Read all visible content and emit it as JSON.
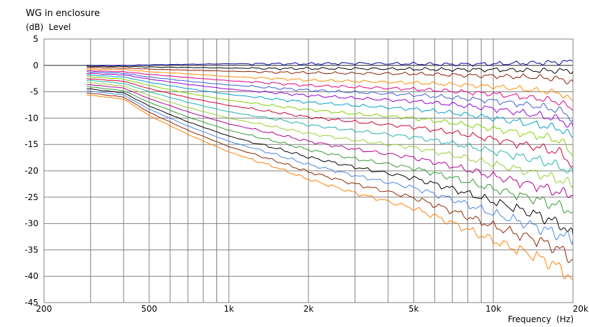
{
  "chart_data": {
    "type": "line",
    "title": "WG in enclosure",
    "ylabel": "(dB)  Level",
    "xlabel": "Frequency  (Hz)",
    "x_scale": "log",
    "xlim": [
      200,
      20000
    ],
    "ylim": [
      -45,
      5
    ],
    "grid": true,
    "y_ticks": [
      "5",
      "0",
      "-5",
      "-10",
      "-15",
      "-20",
      "-25",
      "-30",
      "-35",
      "-40",
      "-45"
    ],
    "x_tick_labels": [
      {
        "value": 200,
        "label": "200"
      },
      {
        "value": 500,
        "label": "500"
      },
      {
        "value": 1000,
        "label": "1k"
      },
      {
        "value": 2000,
        "label": "2k"
      },
      {
        "value": 5000,
        "label": "5k"
      },
      {
        "value": 10000,
        "label": "10k"
      },
      {
        "value": 20000,
        "label": "20k"
      }
    ],
    "x_gridlines": [
      300,
      400,
      500,
      600,
      700,
      800,
      900,
      1000,
      2000,
      3000,
      4000,
      5000,
      6000,
      7000,
      8000,
      9000,
      10000
    ],
    "x": [
      290,
      400,
      500,
      700,
      1000,
      1500,
      2000,
      3000,
      5000,
      7000,
      10000,
      15000,
      18000,
      20000
    ],
    "series": [
      {
        "color": "#0000a0",
        "values": [
          0.0,
          0.0,
          0.1,
          0.2,
          0.3,
          0.3,
          0.3,
          0.4,
          0.3,
          0.2,
          0.3,
          0.5,
          0.6,
          0.8
        ]
      },
      {
        "color": "#000000",
        "values": [
          -0.2,
          -0.2,
          -0.3,
          -0.4,
          -0.5,
          -0.6,
          -0.6,
          -0.6,
          -0.7,
          -0.8,
          -0.8,
          -1.0,
          -1.0,
          -1.0
        ]
      },
      {
        "color": "#8b1a00",
        "values": [
          -0.4,
          -0.5,
          -0.7,
          -0.9,
          -1.1,
          -1.3,
          -1.4,
          -1.5,
          -1.6,
          -1.8,
          -2.0,
          -2.3,
          -2.6,
          -3.2
        ]
      },
      {
        "color": "#ff8c00",
        "values": [
          -0.7,
          -0.8,
          -1.2,
          -1.6,
          -2.1,
          -2.5,
          -2.8,
          -3.0,
          -3.3,
          -3.6,
          -4.0,
          -4.8,
          -5.3,
          -6.8
        ]
      },
      {
        "color": "#e0007f",
        "values": [
          -1.0,
          -1.2,
          -1.7,
          -2.3,
          -2.9,
          -3.4,
          -3.8,
          -4.1,
          -4.5,
          -4.9,
          -5.4,
          -6.3,
          -7.0,
          -8.5
        ]
      },
      {
        "color": "#3a5fcd",
        "values": [
          -1.2,
          -1.5,
          -2.2,
          -3.0,
          -3.7,
          -4.3,
          -4.7,
          -5.1,
          -5.6,
          -6.1,
          -6.7,
          -7.8,
          -8.6,
          -10.2
        ]
      },
      {
        "color": "#9400d3",
        "values": [
          -1.5,
          -1.8,
          -2.6,
          -3.6,
          -4.5,
          -5.2,
          -5.7,
          -6.2,
          -6.8,
          -7.4,
          -8.2,
          -9.5,
          -10.3,
          -11.8
        ]
      },
      {
        "color": "#00a0c8",
        "values": [
          -1.8,
          -2.2,
          -3.2,
          -4.4,
          -5.5,
          -6.4,
          -7.0,
          -7.6,
          -8.3,
          -9.0,
          -10.0,
          -11.3,
          -12.1,
          -13.6
        ]
      },
      {
        "color": "#7fd200",
        "values": [
          -2.1,
          -2.6,
          -3.8,
          -5.3,
          -6.6,
          -7.7,
          -8.4,
          -9.2,
          -10.0,
          -10.9,
          -12.0,
          -13.4,
          -14.3,
          -17.0
        ]
      },
      {
        "color": "#cc0033",
        "values": [
          -2.5,
          -3.0,
          -4.4,
          -6.1,
          -7.6,
          -8.9,
          -9.8,
          -10.7,
          -11.7,
          -12.7,
          -14.0,
          -15.6,
          -16.6,
          -19.0
        ]
      },
      {
        "color": "#20b2aa",
        "values": [
          -2.8,
          -3.4,
          -5.0,
          -7.0,
          -8.8,
          -10.2,
          -11.3,
          -12.4,
          -13.6,
          -14.8,
          -16.3,
          -18.0,
          -19.2,
          -20.6
        ]
      },
      {
        "color": "#9acd32",
        "values": [
          -3.2,
          -3.9,
          -5.7,
          -8.0,
          -10.0,
          -11.7,
          -12.9,
          -14.2,
          -15.6,
          -17.0,
          -18.7,
          -20.6,
          -21.8,
          -22.7
        ]
      },
      {
        "color": "#b0008f",
        "values": [
          -3.6,
          -4.3,
          -6.3,
          -8.8,
          -11.1,
          -13.0,
          -14.4,
          -15.9,
          -17.5,
          -19.1,
          -21.0,
          -23.0,
          -24.2,
          -24.5
        ]
      },
      {
        "color": "#339933",
        "values": [
          -4.0,
          -4.8,
          -7.0,
          -9.8,
          -12.3,
          -14.4,
          -16.0,
          -17.7,
          -19.5,
          -21.3,
          -23.4,
          -25.6,
          -26.8,
          -27.8
        ]
      },
      {
        "color": "#000000",
        "values": [
          -4.4,
          -5.2,
          -7.7,
          -10.7,
          -13.4,
          -15.7,
          -17.4,
          -19.3,
          -21.4,
          -23.4,
          -25.8,
          -28.5,
          -30.2,
          -32.3
        ]
      },
      {
        "color": "#4a86e8",
        "values": [
          -4.8,
          -5.6,
          -8.3,
          -11.5,
          -14.4,
          -16.9,
          -18.8,
          -20.9,
          -23.2,
          -25.4,
          -28.1,
          -30.8,
          -32.2,
          -33.0
        ]
      },
      {
        "color": "#8b2500",
        "values": [
          -5.2,
          -6.0,
          -8.9,
          -12.3,
          -15.4,
          -18.1,
          -20.2,
          -22.5,
          -25.1,
          -27.6,
          -30.5,
          -33.3,
          -35.0,
          -37.0
        ]
      },
      {
        "color": "#ff7f00",
        "values": [
          -5.6,
          -6.4,
          -9.5,
          -13.1,
          -16.4,
          -19.3,
          -21.6,
          -24.2,
          -27.1,
          -29.9,
          -33.2,
          -36.5,
          -38.5,
          -40.8
        ]
      }
    ]
  }
}
